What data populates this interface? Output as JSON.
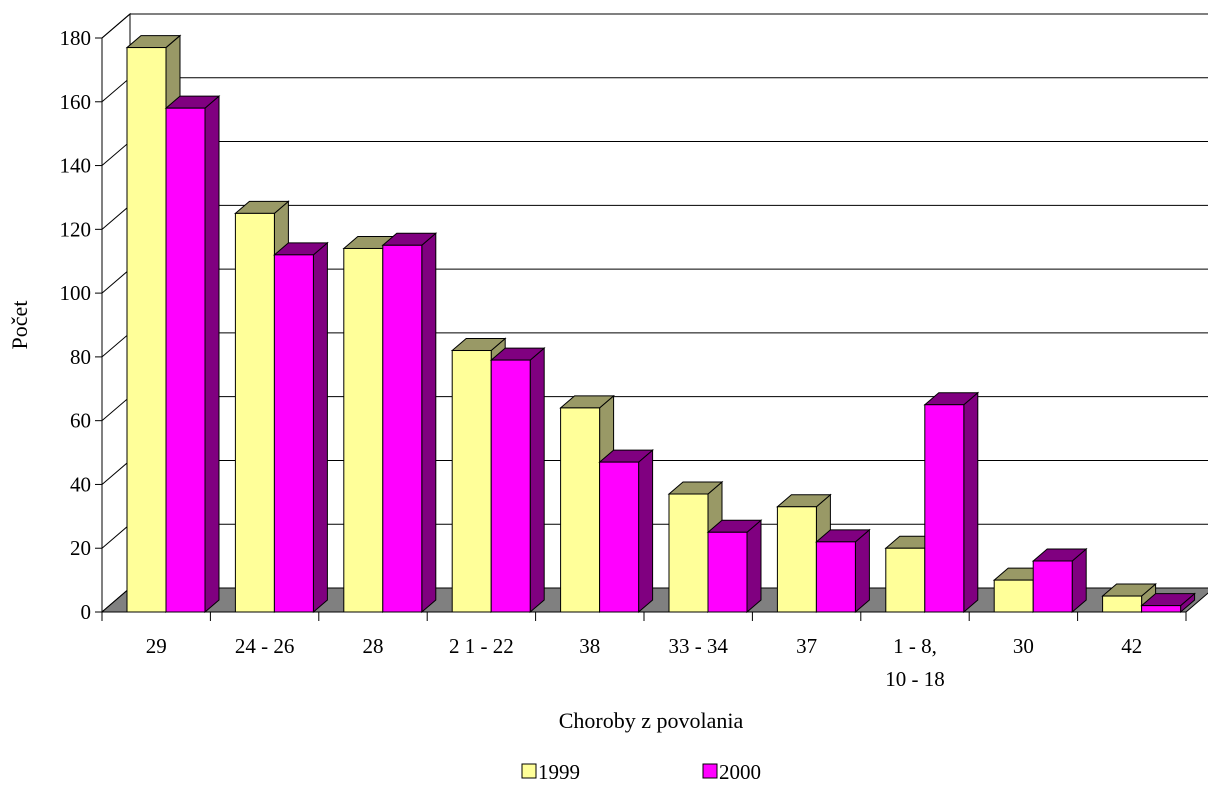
{
  "chart_data": {
    "type": "bar",
    "subtype": "3d-clustered-column",
    "categories": [
      [
        "29"
      ],
      [
        "24 - 26"
      ],
      [
        "28"
      ],
      [
        "2 1 - 22"
      ],
      [
        "38"
      ],
      [
        "33 - 34"
      ],
      [
        "37"
      ],
      [
        "1 - 8,",
        "10 - 18"
      ],
      [
        "30"
      ],
      [
        "42"
      ]
    ],
    "series": [
      {
        "name": "1999",
        "color": "#FFFF99",
        "side_color": "#999966",
        "values": [
          177,
          125,
          114,
          82,
          64,
          37,
          33,
          20,
          10,
          5
        ]
      },
      {
        "name": "2000",
        "color": "#FF00FF",
        "side_color": "#800080",
        "values": [
          158,
          112,
          115,
          79,
          47,
          25,
          22,
          65,
          16,
          2
        ]
      }
    ],
    "xlabel": "Choroby z povolania",
    "ylabel": "Počet",
    "ylim": [
      0,
      180
    ],
    "yticks": [
      0,
      20,
      40,
      60,
      80,
      100,
      120,
      140,
      160,
      180
    ],
    "grid": true,
    "legend_position": "bottom",
    "floor_color": "#808080"
  }
}
